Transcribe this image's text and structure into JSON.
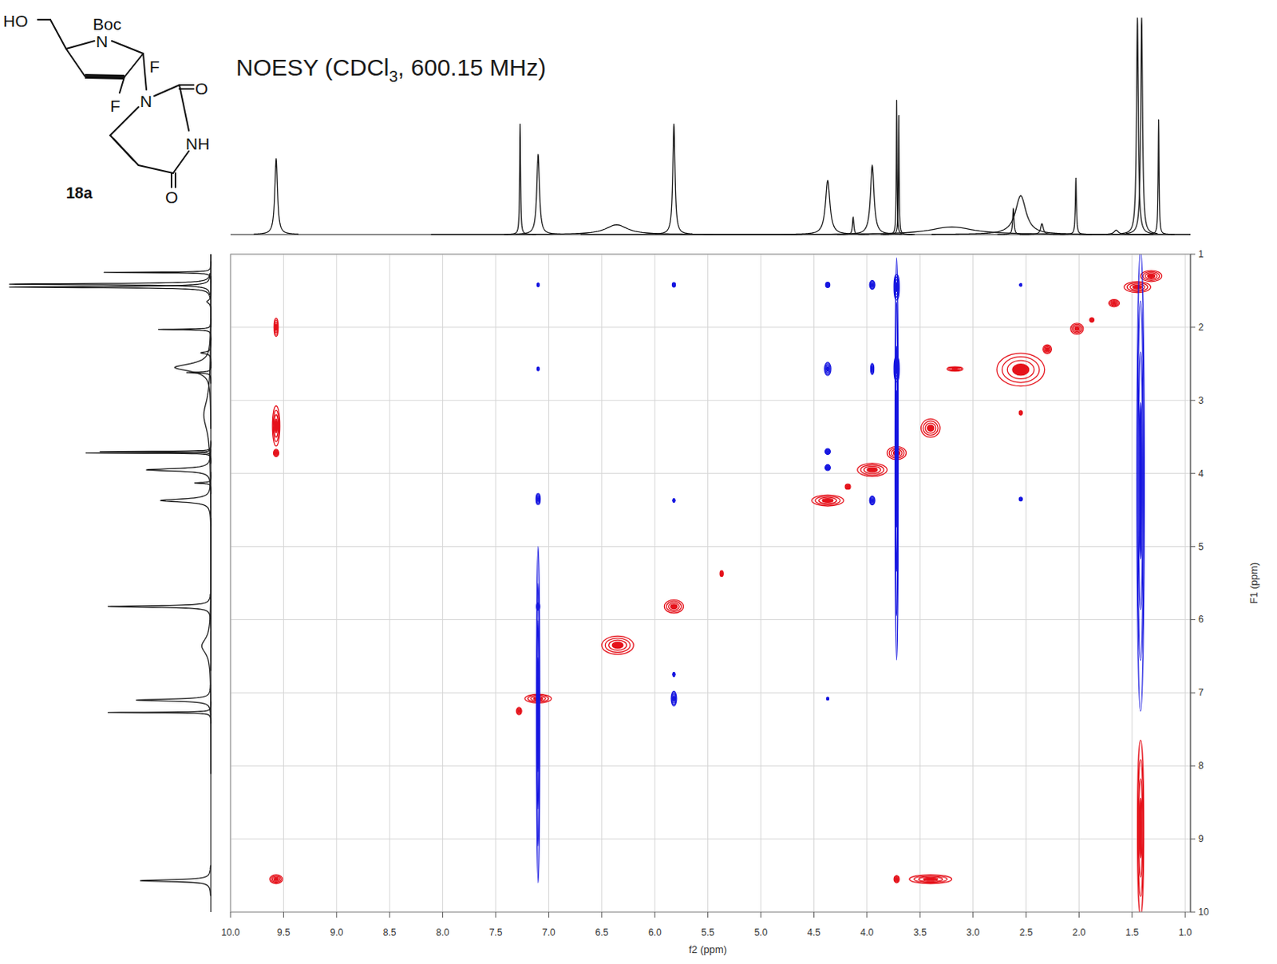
{
  "chart_data": {
    "type": "contour",
    "title": "NOESY (CDCl3, 600.15 MHz)",
    "x_label": "f2 (ppm)",
    "y_label": "F1 (ppm)",
    "xlim": [
      10.0,
      0.95
    ],
    "ylim": [
      10,
      1
    ],
    "xticks": [
      {
        "value": 10,
        "label": "10.0"
      },
      9.5,
      {
        "value": 9,
        "label": "9.0"
      },
      8.5,
      {
        "value": 8,
        "label": "8.0"
      },
      7.5,
      {
        "value": 7,
        "label": "7.0"
      },
      6.5,
      {
        "value": 6,
        "label": "6.0"
      },
      5.5,
      {
        "value": 5,
        "label": "5.0"
      },
      4.5,
      {
        "value": 4,
        "label": "4.0"
      },
      3.5,
      {
        "value": 3,
        "label": "3.0"
      },
      2.5,
      {
        "value": 2,
        "label": "2.0"
      },
      1.5,
      {
        "value": 1,
        "label": "1.0"
      }
    ],
    "yticks": [
      1,
      2,
      3,
      4,
      5,
      6,
      7,
      8,
      9,
      10
    ],
    "grid": true,
    "series": [
      {
        "color": "#e5121b",
        "x": [
          9.57,
          7.1,
          7.28,
          6.35,
          5.82,
          5.37,
          4.37,
          4.18,
          3.95,
          3.72,
          3.4,
          2.55,
          2.3,
          2.02,
          1.88,
          1.67,
          1.45,
          1.32,
          9.57,
          9.57,
          9.57,
          3.72,
          3.4,
          3.17,
          2.55,
          1.42
        ],
        "y": [
          9.55,
          7.08,
          7.25,
          6.35,
          5.82,
          5.37,
          4.37,
          4.18,
          3.95,
          3.72,
          3.38,
          2.58,
          2.3,
          2.02,
          1.9,
          1.67,
          1.45,
          1.3,
          2.0,
          3.35,
          3.72,
          9.55,
          9.55,
          2.57,
          3.17,
          8.85
        ],
        "x_width": [
          0.12,
          0.25,
          0.05,
          0.3,
          0.18,
          0.03,
          0.3,
          0.05,
          0.28,
          0.18,
          0.18,
          0.45,
          0.08,
          0.12,
          0.04,
          0.1,
          0.25,
          0.2,
          0.04,
          0.07,
          0.05,
          0.05,
          0.4,
          0.15,
          0.03,
          0.06
        ],
        "y_width": [
          0.12,
          0.12,
          0.1,
          0.25,
          0.18,
          0.08,
          0.15,
          0.07,
          0.18,
          0.18,
          0.25,
          0.45,
          0.12,
          0.15,
          0.06,
          0.1,
          0.15,
          0.15,
          0.25,
          0.55,
          0.1,
          0.1,
          0.12,
          0.06,
          0.06,
          2.4
        ]
      },
      {
        "color": "#1616e0",
        "x": [
          7.1,
          5.82,
          4.37,
          3.95,
          3.72,
          7.1,
          4.37,
          3.95,
          3.72,
          2.55,
          4.37,
          4.37,
          3.95,
          7.1,
          5.82,
          2.55,
          7.1,
          5.82,
          5.82,
          4.37,
          7.1,
          3.72,
          1.42
        ],
        "y": [
          1.42,
          1.42,
          1.42,
          1.42,
          1.45,
          2.57,
          2.57,
          2.57,
          2.57,
          1.42,
          3.7,
          3.92,
          4.37,
          4.35,
          4.37,
          4.35,
          5.82,
          6.75,
          7.08,
          7.08,
          7.3,
          3.8,
          4.1
        ],
        "x_width": [
          0.02,
          0.03,
          0.04,
          0.05,
          0.05,
          0.02,
          0.06,
          0.03,
          0.05,
          0.02,
          0.05,
          0.05,
          0.05,
          0.04,
          0.02,
          0.03,
          0.03,
          0.02,
          0.05,
          0.02,
          0.03,
          0.03,
          0.07
        ],
        "y_width": [
          0.05,
          0.06,
          0.07,
          0.12,
          0.35,
          0.05,
          0.18,
          0.15,
          0.35,
          0.04,
          0.08,
          0.08,
          0.12,
          0.15,
          0.05,
          0.05,
          0.1,
          0.06,
          0.2,
          0.04,
          4.6,
          5.5,
          6.3
        ]
      }
    ],
    "projection": {
      "color": "#1a1a1a",
      "shifts": [
        9.57,
        7.27,
        7.1,
        6.36,
        5.82,
        4.37,
        4.13,
        3.95,
        3.72,
        3.7,
        3.2,
        2.62,
        2.55,
        2.35,
        2.03,
        1.65,
        1.45,
        1.41,
        1.25
      ],
      "heights": [
        0.35,
        0.51,
        0.37,
        0.045,
        0.51,
        0.25,
        0.08,
        0.32,
        0.62,
        0.55,
        0.035,
        0.12,
        0.18,
        0.05,
        0.26,
        0.02,
        1.0,
        1.0,
        0.53
      ],
      "widths": [
        0.03,
        0.01,
        0.03,
        0.25,
        0.025,
        0.05,
        0.015,
        0.04,
        0.008,
        0.008,
        0.5,
        0.015,
        0.12,
        0.03,
        0.012,
        0.05,
        0.02,
        0.02,
        0.01
      ]
    }
  },
  "structure": {
    "atoms": [
      "HO",
      "Boc",
      "N",
      "F",
      "F",
      "N",
      "O",
      "NH",
      "O"
    ],
    "label": "18a"
  }
}
